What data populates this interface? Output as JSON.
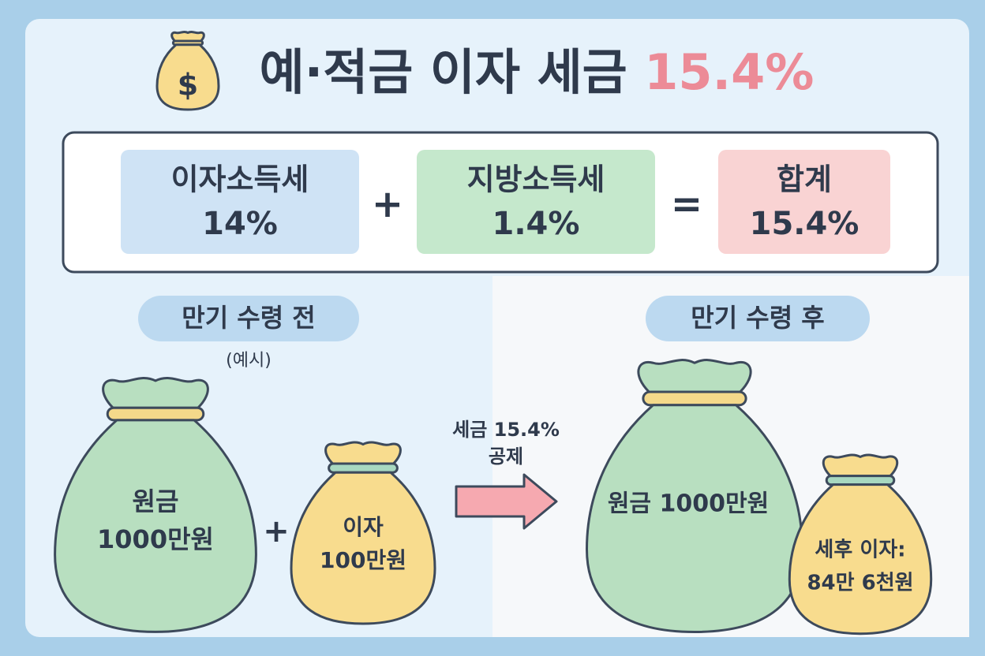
{
  "header": {
    "icon": "$",
    "title": "예·적금 이자 세금",
    "highlight": "15.4%"
  },
  "formula": {
    "items": [
      {
        "label": "이자소득세",
        "value": "14%"
      },
      {
        "label": "지방소득세",
        "value": "1.4%"
      },
      {
        "label": "합계",
        "value": "15.4%"
      }
    ],
    "operators": [
      "+",
      "="
    ]
  },
  "before": {
    "label": "만기 수령 전",
    "note": "(예시)",
    "principal": {
      "label": "원금",
      "amount": "1000만원"
    },
    "operator": "+",
    "interest": {
      "label": "이자",
      "amount": "100만원"
    }
  },
  "arrow": {
    "line1": "세금 15.4%",
    "line2": "공제"
  },
  "after": {
    "label": "만기 수령 후",
    "principal": "원금 1000만원",
    "interest": {
      "label": "세후 이자:",
      "amount": "84만 6천원"
    }
  }
}
